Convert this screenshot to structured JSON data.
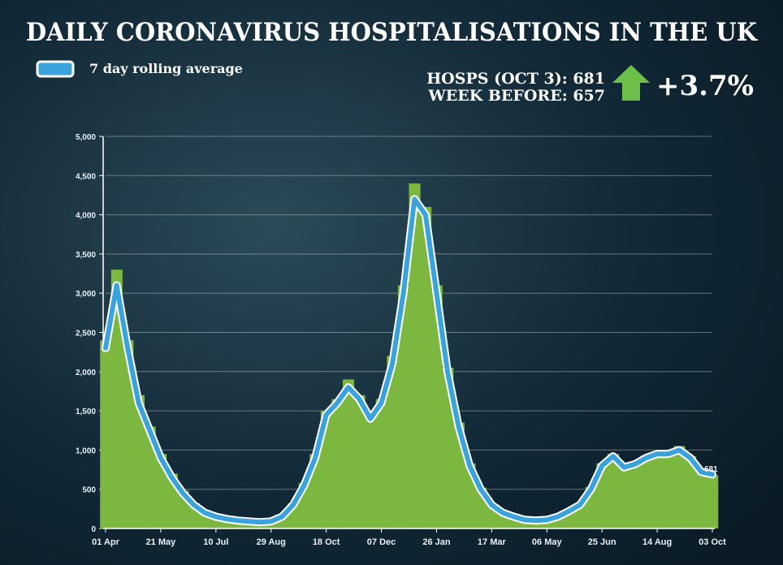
{
  "chart_data": {
    "type": "bar_line",
    "title": "DAILY CORONAVIRUS HOSPITALISATIONS IN THE UK",
    "annotations": {
      "hosps": "HOSPS (OCT 3): 681",
      "week_before": "WEEK BEFORE: 657",
      "change": "+3.7%",
      "end_label": "681"
    },
    "categories": [
      "01 Apr",
      null,
      null,
      null,
      null,
      "21 May",
      null,
      null,
      null,
      null,
      "10 Jul",
      null,
      null,
      null,
      null,
      "29 Aug",
      null,
      null,
      null,
      null,
      "18 Oct",
      null,
      null,
      null,
      null,
      "07 Dec",
      null,
      null,
      null,
      null,
      "26 Jan",
      null,
      null,
      null,
      null,
      "17 Mar",
      null,
      null,
      null,
      null,
      "06 May",
      null,
      null,
      null,
      null,
      "25 Jun",
      null,
      null,
      null,
      null,
      "14 Aug",
      null,
      null,
      null,
      null,
      "03 Oct"
    ],
    "series": [
      {
        "color": "#7cb83f",
        "values": [
          2400,
          3300,
          2400,
          1700,
          1300,
          950,
          700,
          480,
          320,
          210,
          150,
          120,
          100,
          90,
          85,
          95,
          160,
          320,
          580,
          950,
          1500,
          1650,
          1900,
          1700,
          1450,
          1650,
          2200,
          3100,
          4400,
          4100,
          3100,
          2050,
          1350,
          830,
          520,
          310,
          210,
          150,
          110,
          100,
          115,
          160,
          230,
          320,
          530,
          830,
          950,
          800,
          850,
          930,
          980,
          970,
          1050,
          920,
          740,
          681
        ]
      },
      {
        "name": "7 day rolling average",
        "color": "#3aa3dc",
        "values": [
          2300,
          3100,
          2300,
          1600,
          1250,
          900,
          650,
          450,
          300,
          200,
          150,
          120,
          100,
          90,
          80,
          90,
          150,
          300,
          550,
          900,
          1450,
          1600,
          1800,
          1650,
          1400,
          1600,
          2100,
          3000,
          4200,
          4000,
          3000,
          2000,
          1300,
          800,
          500,
          300,
          200,
          150,
          110,
          100,
          110,
          150,
          220,
          300,
          500,
          800,
          920,
          780,
          820,
          900,
          950,
          950,
          1000,
          900,
          720,
          690
        ]
      }
    ],
    "ylim": [
      0,
      5000
    ],
    "yticks": [
      0,
      500,
      {
        "value": 1000,
        "label": "1,000"
      },
      {
        "value": 1500,
        "label": "1,500"
      },
      {
        "value": 2000,
        "label": "2,000"
      },
      {
        "value": 2500,
        "label": "2,500"
      },
      {
        "value": 3000,
        "label": "3,000"
      },
      {
        "value": 3500,
        "label": "3,500"
      },
      {
        "value": 4000,
        "label": "4,000"
      },
      {
        "value": 4500,
        "label": "4,500"
      },
      {
        "value": 5000,
        "label": "5,000"
      }
    ],
    "grid": true
  }
}
